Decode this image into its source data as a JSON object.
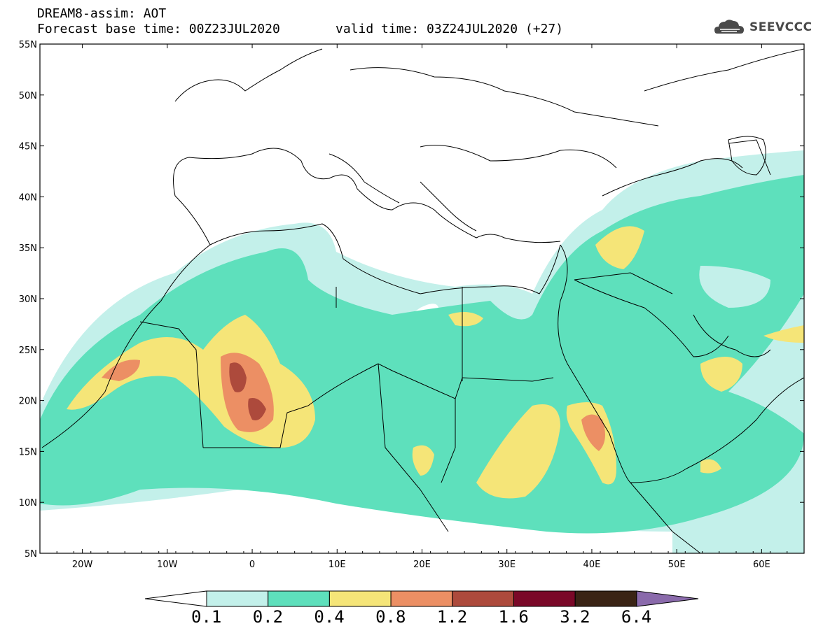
{
  "header": {
    "model_line": "DREAM8-assim: AOT",
    "base_time_line": "Forecast base time: 00Z23JUL2020",
    "valid_time_line": "valid time: 03Z24JUL2020 (+27)",
    "logo_text": "SEEVCCC",
    "logo_icon": "cloud-icon"
  },
  "map": {
    "lon_range": [
      -25,
      65
    ],
    "lat_range": [
      5,
      55
    ],
    "lat_ticks": [
      "55N",
      "50N",
      "45N",
      "40N",
      "35N",
      "30N",
      "25N",
      "20N",
      "15N",
      "10N",
      "5N"
    ],
    "lon_ticks": [
      "20W",
      "10W",
      "0",
      "10E",
      "20E",
      "30E",
      "40E",
      "50E",
      "60E"
    ],
    "variable": "Aerosol Optical Thickness"
  },
  "colorbar": {
    "labels": [
      "0.1",
      "0.2",
      "0.4",
      "0.8",
      "1.2",
      "1.6",
      "3.2",
      "6.4"
    ],
    "colors": [
      "#ffffff",
      "#c3f0ea",
      "#5ee0bc",
      "#f5e578",
      "#ec8f64",
      "#ad4a3c",
      "#7a0828",
      "#3a2415",
      "#8a6aab"
    ]
  },
  "colors": {
    "land_border": "#000000",
    "low": "#c3f0ea",
    "moderate": "#5ee0bc",
    "high": "#f5e578",
    "very_high": "#ec8f64",
    "extreme": "#ad4a3c"
  }
}
